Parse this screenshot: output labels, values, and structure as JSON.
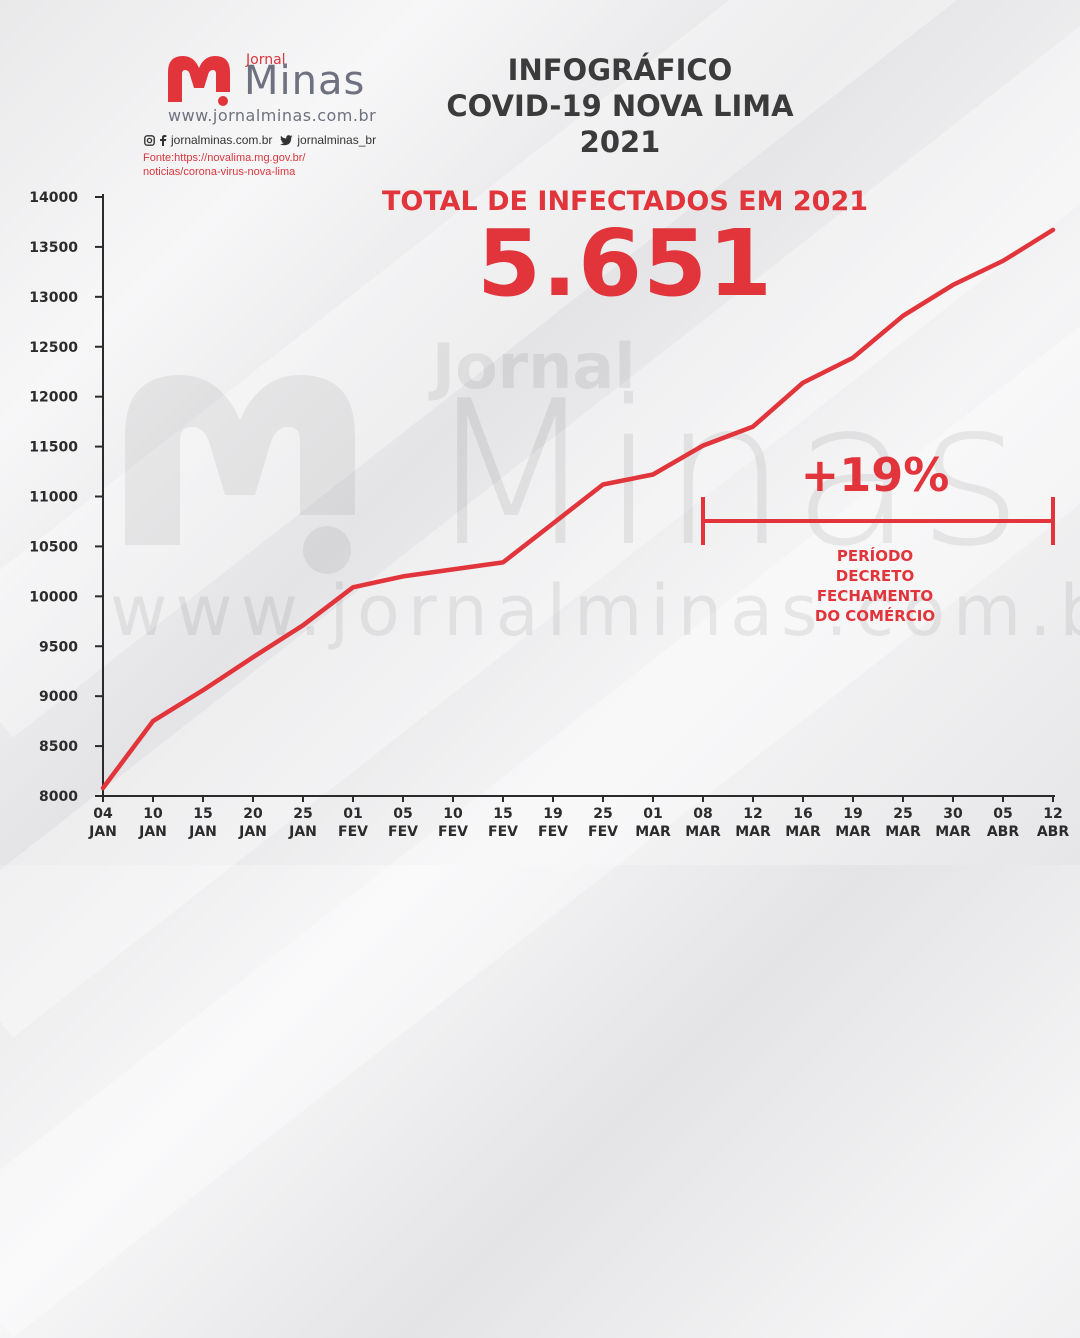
{
  "header": {
    "logo_brand_small": "Jornal",
    "logo_brand_large": "Minas",
    "logo_url": "www.jornalminas.com.br",
    "social_site": "jornalminas.com.br",
    "social_twitter": "jornalminas_br",
    "source_line1": "Fonte:https://novalima.mg.gov.br/",
    "source_line2": "noticias/corona-virus-nova-lima",
    "title_line1": "INFOGRÁFICO",
    "title_line2": "COVID-19 NOVA LIMA",
    "title_line3": "2021"
  },
  "highlight": {
    "total_label": "TOTAL DE INFECTADOS EM 2021",
    "total_value": "5.651",
    "percent_change": "+19%",
    "period_line1": "PERÍODO",
    "period_line2": "DECRETO",
    "period_line3": "FECHAMENTO",
    "period_line4": "DO COMÉRCIO",
    "period_start_index": 12,
    "period_end_index": 19
  },
  "watermark": {
    "brand_small": "Jornal",
    "brand_large": "Minas",
    "url": "www.jornalminas.com.br"
  },
  "colors": {
    "accent": "#e1343b",
    "axis": "#2b2b2b",
    "title": "#3b3b3b"
  },
  "chart_data": {
    "type": "line",
    "title": "",
    "xlabel": "",
    "ylabel": "",
    "ylim": [
      8000,
      14000
    ],
    "yticks": [
      8000,
      8500,
      9000,
      9500,
      10000,
      10500,
      11000,
      11500,
      12000,
      12500,
      13000,
      13500,
      14000
    ],
    "categories": [
      [
        "04",
        "JAN"
      ],
      [
        "10",
        "JAN"
      ],
      [
        "15",
        "JAN"
      ],
      [
        "20",
        "JAN"
      ],
      [
        "25",
        "JAN"
      ],
      [
        "01",
        "FEV"
      ],
      [
        "05",
        "FEV"
      ],
      [
        "10",
        "FEV"
      ],
      [
        "15",
        "FEV"
      ],
      [
        "19",
        "FEV"
      ],
      [
        "25",
        "FEV"
      ],
      [
        "01",
        "MAR"
      ],
      [
        "08",
        "MAR"
      ],
      [
        "12",
        "MAR"
      ],
      [
        "16",
        "MAR"
      ],
      [
        "19",
        "MAR"
      ],
      [
        "25",
        "MAR"
      ],
      [
        "30",
        "MAR"
      ],
      [
        "05",
        "ABR"
      ],
      [
        "12",
        "ABR"
      ]
    ],
    "series": [
      {
        "values": [
          8080,
          8750,
          9060,
          9390,
          9710,
          10090,
          10200,
          10270,
          10340,
          10730,
          11120,
          11220,
          11510,
          11700,
          12140,
          12390,
          12810,
          13120,
          13360,
          13670
        ]
      }
    ],
    "grid": false,
    "legend": "none"
  }
}
